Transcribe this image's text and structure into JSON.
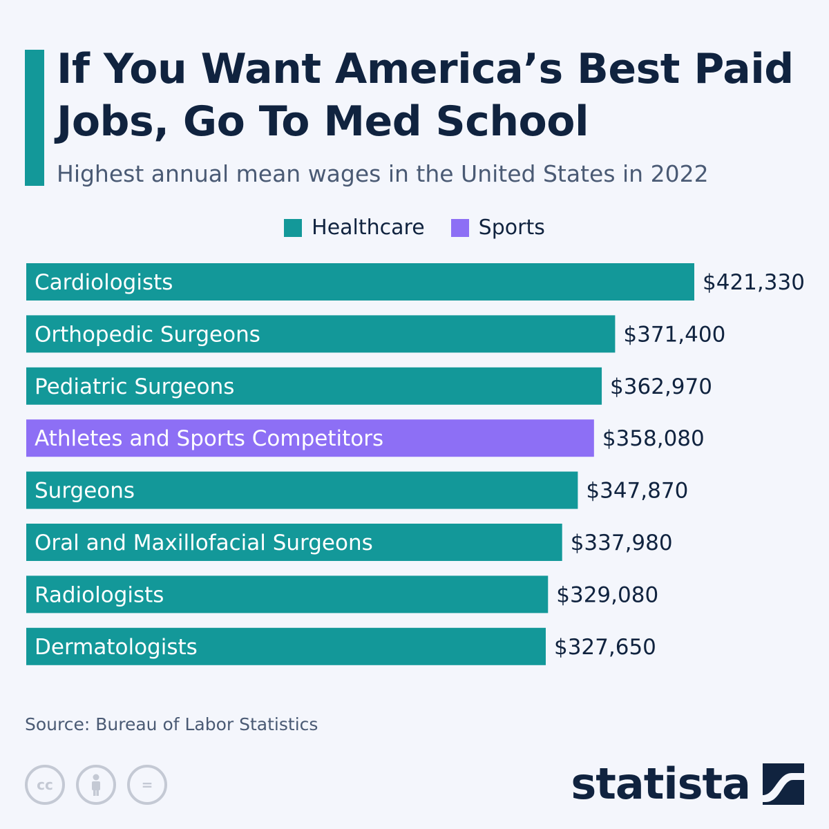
{
  "title": "If You Want America’s Best Paid Jobs, Go To Med School",
  "subtitle": "Highest annual mean wages in the United States in 2022",
  "source": "Source: Bureau of Labor Statistics",
  "brand": "statista",
  "colors": {
    "accent": "#139899",
    "healthcare": "#139899",
    "sports": "#8d6ff5",
    "text": "#10233f"
  },
  "icons": [
    "creative-commons-icon",
    "attribution-icon",
    "no-derivatives-icon",
    "statista-logo-icon"
  ],
  "cc_labels": {
    "cc": "cc",
    "eq": "="
  },
  "chart_data": {
    "type": "bar",
    "orientation": "horizontal",
    "title": "If You Want America’s Best Paid Jobs, Go To Med School",
    "subtitle": "Highest annual mean wages in the United States in 2022",
    "legend": [
      {
        "name": "Healthcare",
        "color": "#139899"
      },
      {
        "name": "Sports",
        "color": "#8d6ff5"
      }
    ],
    "legend_position": "top-center",
    "categories": [
      "Cardiologists",
      "Orthopedic Surgeons",
      "Pediatric Surgeons",
      "Athletes and Sports Competitors",
      "Surgeons",
      "Oral and Maxillofacial Surgeons",
      "Radiologists",
      "Dermatologists"
    ],
    "values": [
      421330,
      371400,
      362970,
      358080,
      347870,
      337980,
      329080,
      327650
    ],
    "value_labels": [
      "$421,330",
      "$371,400",
      "$362,970",
      "$358,080",
      "$347,870",
      "$337,980",
      "$329,080",
      "$327,650"
    ],
    "groups": [
      "Healthcare",
      "Healthcare",
      "Healthcare",
      "Sports",
      "Healthcare",
      "Healthcare",
      "Healthcare",
      "Healthcare"
    ],
    "grid": false
  }
}
